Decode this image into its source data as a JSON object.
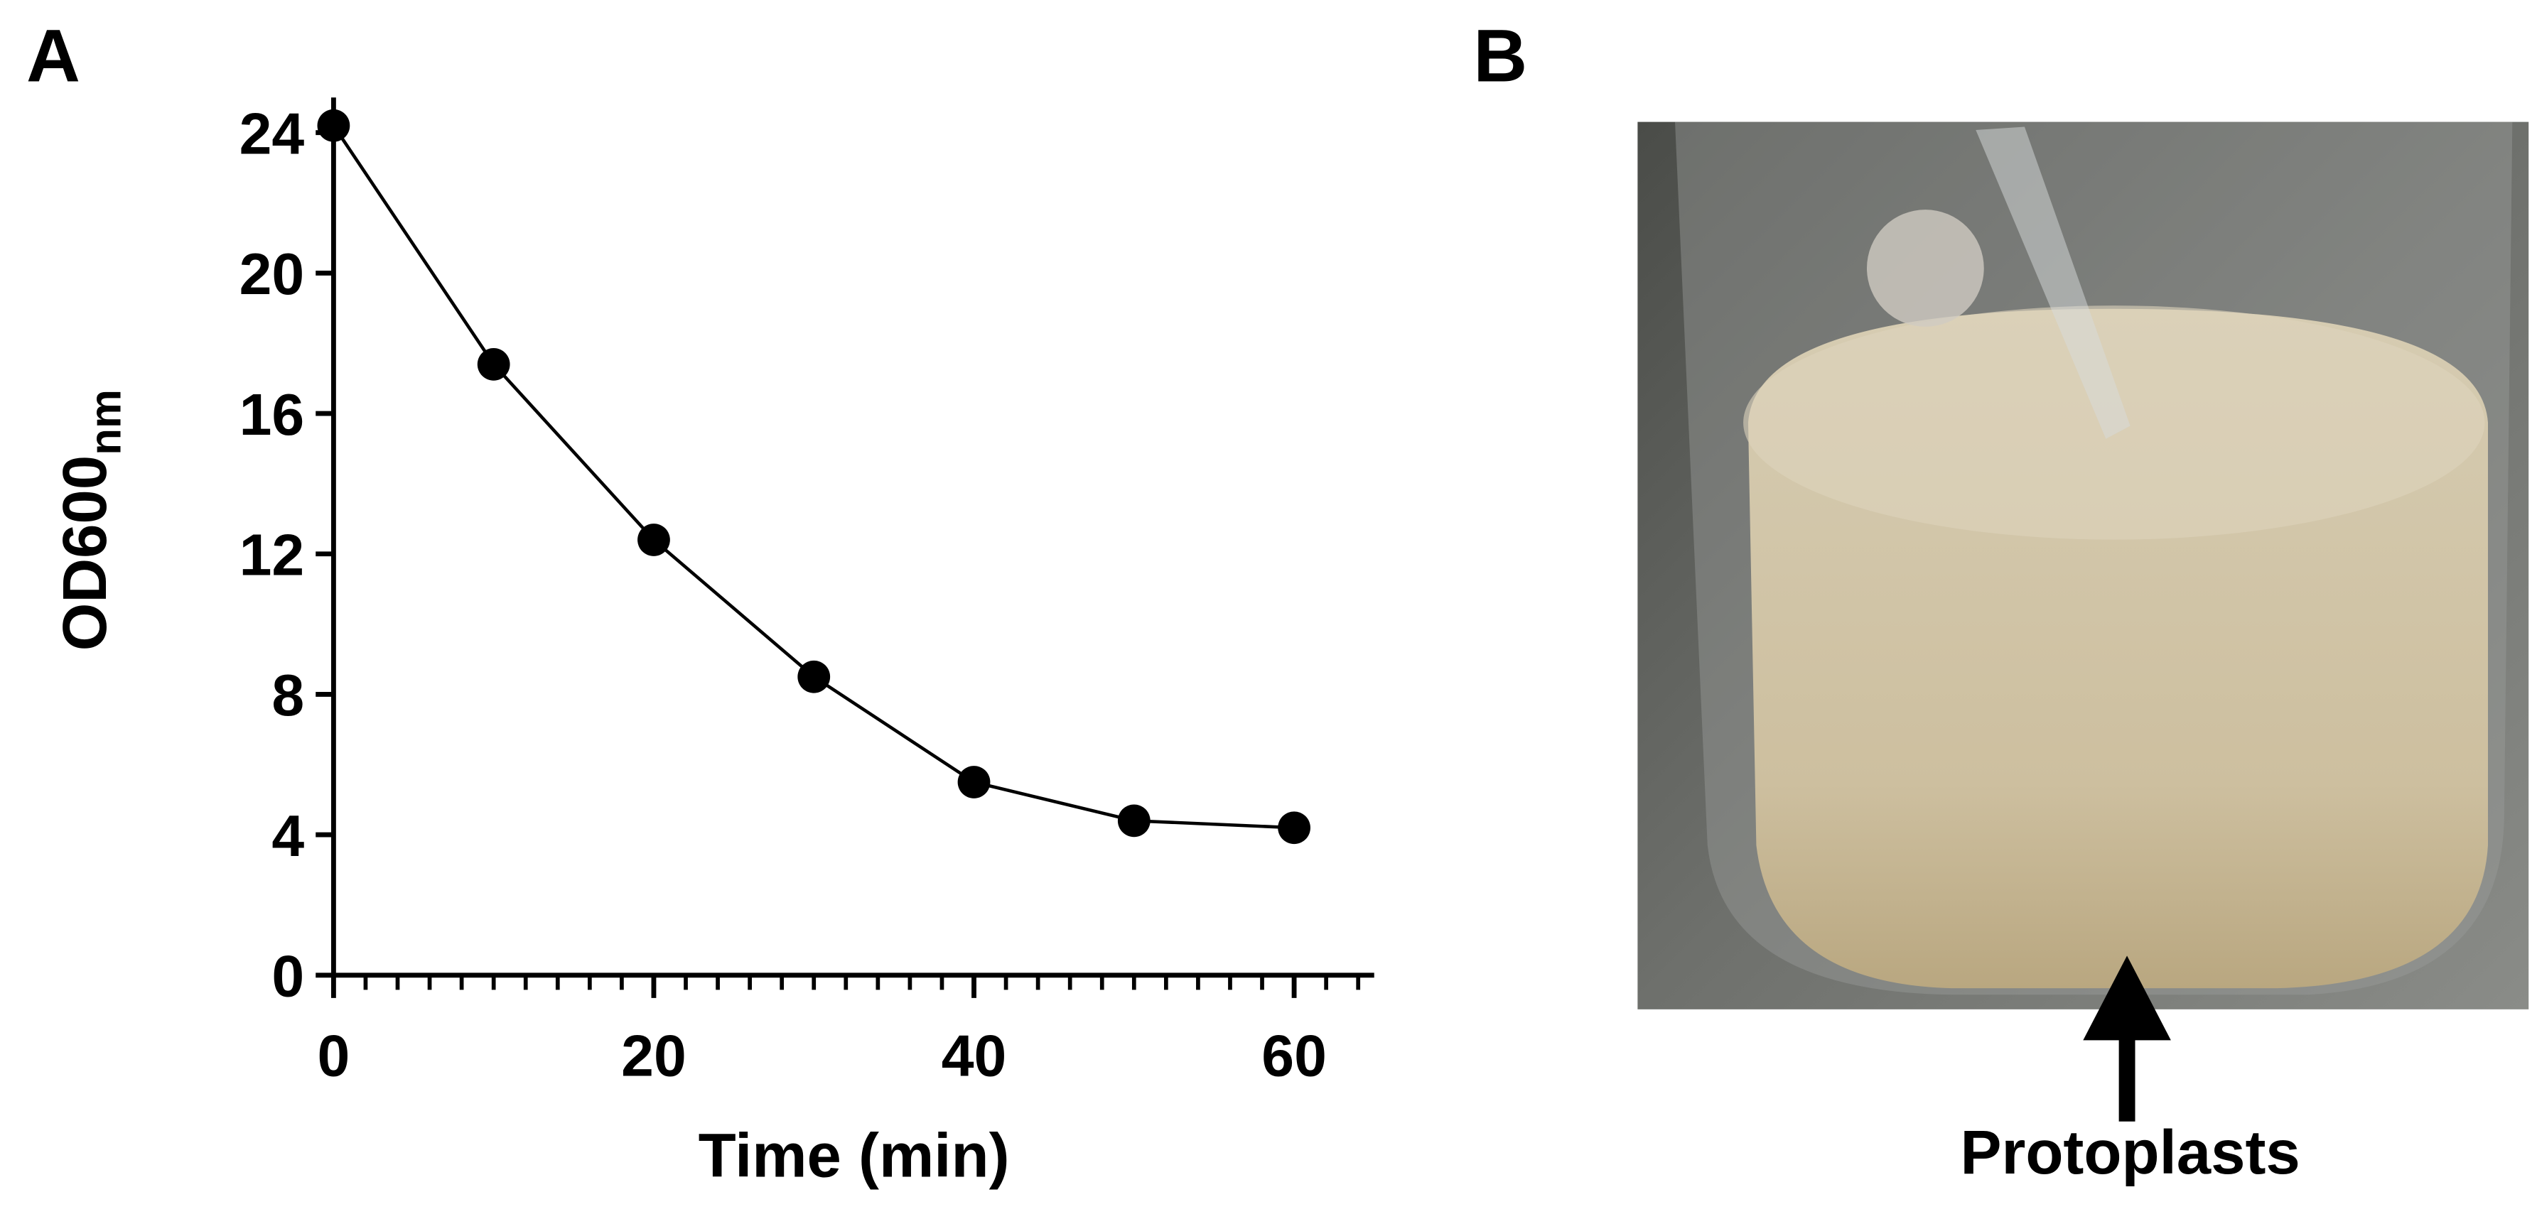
{
  "chart_data": {
    "type": "line",
    "panel_label": "A",
    "x_label": "Time (min)",
    "y_label": "OD600",
    "y_label_sub": "nm",
    "x": [
      0,
      10,
      20,
      30,
      40,
      50,
      60
    ],
    "series": [
      {
        "name": "OD600",
        "color": "#000000",
        "values": [
          24.2,
          17.4,
          12.4,
          8.5,
          5.5,
          4.4,
          4.2
        ]
      }
    ],
    "xlim": [
      0,
      65
    ],
    "xticks": [
      0,
      20,
      40,
      60
    ],
    "xminorticks": [
      2,
      4,
      6,
      8,
      10,
      12,
      14,
      16,
      18,
      22,
      24,
      26,
      28,
      30,
      32,
      34,
      36,
      38,
      42,
      44,
      46,
      48,
      50,
      52,
      54,
      56,
      58,
      62,
      64
    ],
    "ylim": [
      0,
      25
    ],
    "yticks": [
      0,
      4,
      8,
      12,
      16,
      20,
      24
    ],
    "grid": false
  },
  "panel_b": {
    "label": "B",
    "annotation": "Protoplasts"
  }
}
